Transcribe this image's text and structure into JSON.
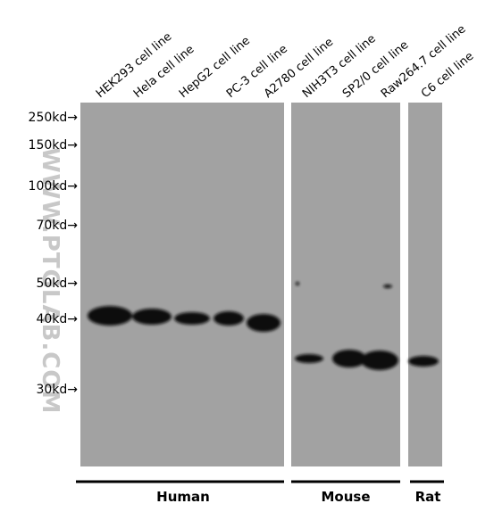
{
  "lanes": [
    "HEK293 cell line",
    "Hela cell line",
    "HepG2 cell line",
    "PC-3 cell line",
    "A2780 cell line",
    "NIH3T3 cell line",
    "SP2/0 cell line",
    "Raw264.7 cell line",
    "C6 cell line"
  ],
  "markers": [
    "250kd→",
    "150kd→",
    "100kd→",
    "70kd→",
    "50kd→",
    "40kd→",
    "30kd→"
  ],
  "species": [
    "Human",
    "Mouse",
    "Rat"
  ],
  "watermark": "WWW.PTGLAB.COM"
}
